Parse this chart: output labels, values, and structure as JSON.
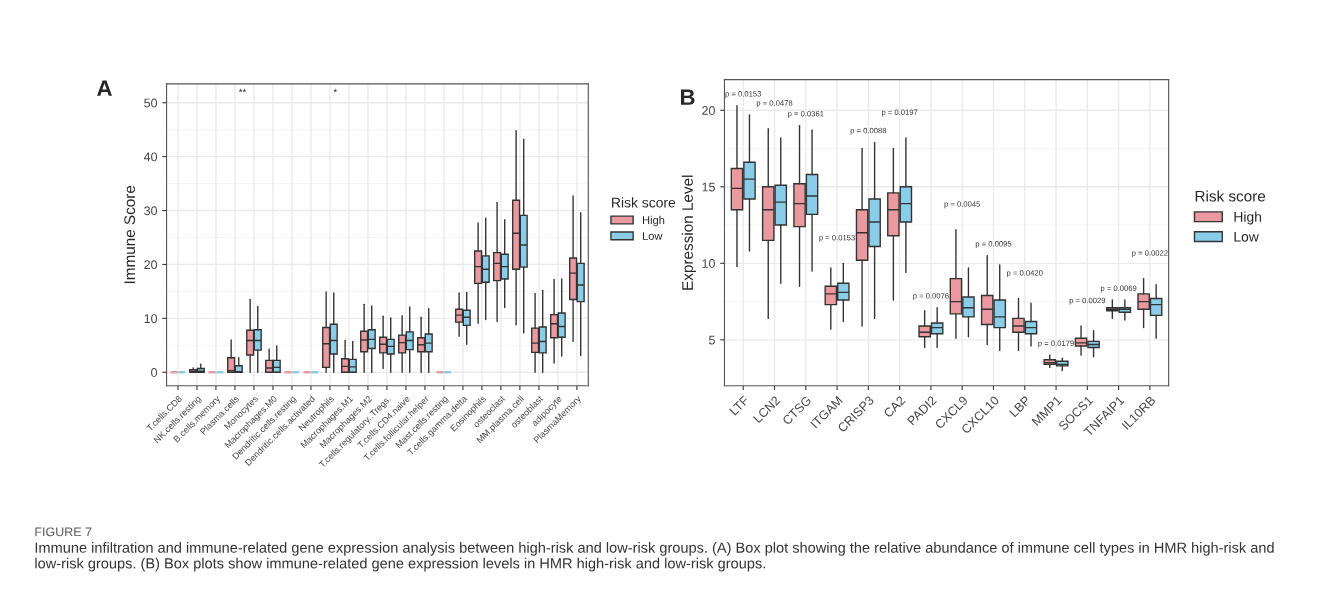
{
  "chart_data": [
    {
      "type": "box",
      "title": "A",
      "ylabel": "Immune Score",
      "legend_title": "Risk score",
      "legend": "right",
      "grid": true,
      "categories": [
        "T.cells.CD8",
        "NK.cells.resting",
        "B.cells.memory",
        "Plasma.cells",
        "Monocytes",
        "Macrophages.M0",
        "Dendritic.cells.resting",
        "Dendritic.cells.activated",
        "Neutrophils",
        "Macrophages.M1",
        "Macrophages.M2",
        "T.cells.regulatory..Tregs.",
        "T.cells.CD4.naive",
        "T.cells.follicular.helper",
        "Mast.cells.resting",
        "T.cells.gamma.delta",
        "Eosinophils",
        "osteoclast",
        "MM.plasma.cell",
        "osteoblast",
        "adipocyte",
        "PlasmaMemory"
      ],
      "ylim": [
        -2.5,
        53.5
      ],
      "yticks": [
        0,
        10,
        20,
        30,
        40,
        50
      ],
      "annotations": [
        "**",
        "*",
        "FIGURE 7",
        "Immune infiltration and immune-related gene expression analysis between high-risk and low-risk groups. (A) Box plot showing the relative abundance of immune cell types in HMR high-risk and low-risk groups. (B) Box plots show immune-related gene expression levels in HMR high-risk and low-risk groups."
      ],
      "series": [
        {
          "name": "High",
          "color": "#ea9a9e",
          "boxes": [
            {
              "low": 0,
              "q1": 0,
              "median": 0,
              "q3": 0,
              "high": 0
            },
            {
              "low": 0,
              "q1": 0,
              "median": 0.2,
              "q3": 0.5,
              "high": 0.8
            },
            {
              "low": 0,
              "q1": 0,
              "median": 0,
              "q3": 0,
              "high": 0
            },
            {
              "low": 0,
              "q1": 0,
              "median": 0.3,
              "q3": 2.7,
              "high": 6
            },
            {
              "low": 0,
              "q1": 3.2,
              "median": 5.9,
              "q3": 7.8,
              "high": 13.5
            },
            {
              "low": 0,
              "q1": 0,
              "median": 0.8,
              "q3": 2.2,
              "high": 4.3
            },
            {
              "low": 0,
              "q1": 0,
              "median": 0,
              "q3": 0,
              "high": 0
            },
            {
              "low": 0,
              "q1": 0,
              "median": 0,
              "q3": 0,
              "high": 0
            },
            {
              "low": 0,
              "q1": 0.9,
              "median": 5.3,
              "q3": 8.3,
              "high": 14.9
            },
            {
              "low": 0,
              "q1": 0,
              "median": 1.1,
              "q3": 2.5,
              "high": 5.9
            },
            {
              "low": 0,
              "q1": 3.8,
              "median": 6.0,
              "q3": 7.6,
              "high": 12.6
            },
            {
              "low": 0.7,
              "q1": 3.6,
              "median": 5.2,
              "q3": 6.5,
              "high": 10.4
            },
            {
              "low": 0,
              "q1": 3.6,
              "median": 5.5,
              "q3": 6.9,
              "high": 10.5
            },
            {
              "low": 0,
              "q1": 3.8,
              "median": 5.1,
              "q3": 6.4,
              "high": 10.2
            },
            {
              "low": 0,
              "q1": 0,
              "median": 0,
              "q3": 0,
              "high": 0
            },
            {
              "low": 6.7,
              "q1": 9.3,
              "median": 10.6,
              "q3": 11.7,
              "high": 14.7
            },
            {
              "low": 9.1,
              "q1": 16.5,
              "median": 19.6,
              "q3": 22.5,
              "high": 27.7
            },
            {
              "low": 9.4,
              "q1": 17.0,
              "median": 20.2,
              "q3": 22.2,
              "high": 31.5
            },
            {
              "low": 8.8,
              "q1": 19.1,
              "median": 25.8,
              "q3": 31.9,
              "high": 44.8
            },
            {
              "low": 0,
              "q1": 3.7,
              "median": 5.4,
              "q3": 8.2,
              "high": 14.6
            },
            {
              "low": 1.7,
              "q1": 6.4,
              "median": 9.0,
              "q3": 10.7,
              "high": 17.2
            },
            {
              "low": 5.7,
              "q1": 13.5,
              "median": 18.4,
              "q3": 21.2,
              "high": 32.7
            }
          ]
        },
        {
          "name": "Low",
          "color": "#89cde9",
          "boxes": [
            {
              "low": 0,
              "q1": 0,
              "median": 0,
              "q3": 0,
              "high": 0
            },
            {
              "low": 0,
              "q1": 0,
              "median": 0.2,
              "q3": 0.7,
              "high": 1.5
            },
            {
              "low": 0,
              "q1": 0,
              "median": 0,
              "q3": 0,
              "high": 0
            },
            {
              "low": 0,
              "q1": 0,
              "median": 0.1,
              "q3": 1.2,
              "high": 2.7
            },
            {
              "low": 0,
              "q1": 4.1,
              "median": 5.9,
              "q3": 7.9,
              "high": 12.2
            },
            {
              "low": 0,
              "q1": 0,
              "median": 0.9,
              "q3": 2.2,
              "high": 4.9
            },
            {
              "low": 0,
              "q1": 0,
              "median": 0,
              "q3": 0,
              "high": 0
            },
            {
              "low": 0,
              "q1": 0,
              "median": 0,
              "q3": 0,
              "high": 0
            },
            {
              "low": 0,
              "q1": 3.4,
              "median": 5.9,
              "q3": 8.9,
              "high": 14.7
            },
            {
              "low": 0,
              "q1": 0,
              "median": 1.0,
              "q3": 2.4,
              "high": 5.7
            },
            {
              "low": 0,
              "q1": 4.4,
              "median": 6.1,
              "q3": 7.9,
              "high": 12.3
            },
            {
              "low": 0,
              "q1": 3.4,
              "median": 4.8,
              "q3": 6.1,
              "high": 10.1
            },
            {
              "low": 0,
              "q1": 4.2,
              "median": 5.9,
              "q3": 7.5,
              "high": 12.1
            },
            {
              "low": 0,
              "q1": 3.8,
              "median": 5.4,
              "q3": 7.1,
              "high": 11.8
            },
            {
              "low": 0,
              "q1": 0,
              "median": 0,
              "q3": 0,
              "high": 0
            },
            {
              "low": 5.2,
              "q1": 8.7,
              "median": 10.2,
              "q3": 11.5,
              "high": 14.8
            },
            {
              "low": 9.8,
              "q1": 16.7,
              "median": 19.1,
              "q3": 21.6,
              "high": 28.6
            },
            {
              "low": 12.0,
              "q1": 17.3,
              "median": 19.6,
              "q3": 21.9,
              "high": 28.3
            },
            {
              "low": 7.3,
              "q1": 19.5,
              "median": 23.6,
              "q3": 29.1,
              "high": 43.2
            },
            {
              "low": 0,
              "q1": 3.6,
              "median": 5.7,
              "q3": 8.4,
              "high": 15.2
            },
            {
              "low": 3.0,
              "q1": 6.5,
              "median": 8.5,
              "q3": 11.0,
              "high": 17.3
            },
            {
              "low": 3.1,
              "q1": 13.1,
              "median": 16.2,
              "q3": 20.2,
              "high": 29.6
            }
          ]
        }
      ]
    },
    {
      "type": "box",
      "title": "B",
      "ylabel": "Expression Level",
      "legend_title": "Risk score",
      "legend": "right",
      "grid": true,
      "categories": [
        "LTF",
        "LCN2",
        "CTSG",
        "ITGAM",
        "CRISP3",
        "CA2",
        "PADI2",
        "CXCL9",
        "CXCL10",
        "LBP",
        "MMP1",
        "SOCS1",
        "TNFAIP1",
        "IL10RB"
      ],
      "ylim": [
        2,
        22
      ],
      "yticks": [
        5,
        10,
        15,
        20
      ],
      "annotations": [
        "p = 0.0153",
        "p = 0.0478",
        "p = 0.0361",
        "p = 0.0153",
        "p = 0.0088",
        "p = 0.0197",
        "p = 0.0076",
        "p = 0.0045",
        "p = 0.0095",
        "p = 0.0420",
        "p = 0.0179",
        "p = 0.0029",
        "p = 0.0069",
        "p = 0.0022"
      ],
      "series": [
        {
          "name": "High",
          "color": "#ea9a9e",
          "boxes": [
            {
              "low": 9.8,
              "q1": 13.5,
              "median": 14.9,
              "q3": 16.2,
              "high": 20.3
            },
            {
              "low": 6.4,
              "q1": 11.5,
              "median": 13.5,
              "q3": 15.0,
              "high": 18.8
            },
            {
              "low": 8.5,
              "q1": 12.4,
              "median": 13.9,
              "q3": 15.2,
              "high": 19.0
            },
            {
              "low": 5.7,
              "q1": 7.3,
              "median": 8.0,
              "q3": 8.5,
              "high": 9.7
            },
            {
              "low": 5.9,
              "q1": 10.2,
              "median": 12.0,
              "q3": 13.5,
              "high": 17.5
            },
            {
              "low": 7.6,
              "q1": 11.8,
              "median": 13.5,
              "q3": 14.6,
              "high": 17.5
            },
            {
              "low": 4.5,
              "q1": 5.2,
              "median": 5.5,
              "q3": 5.9,
              "high": 6.9
            },
            {
              "low": 5.1,
              "q1": 6.7,
              "median": 7.5,
              "q3": 9.0,
              "high": 12.2
            },
            {
              "low": 4.7,
              "q1": 6.0,
              "median": 7.0,
              "q3": 7.9,
              "high": 10.5
            },
            {
              "low": 4.3,
              "q1": 5.5,
              "median": 5.9,
              "q3": 6.4,
              "high": 7.7
            },
            {
              "low": 3.2,
              "q1": 3.4,
              "median": 3.5,
              "q3": 3.7,
              "high": 4.0
            },
            {
              "low": 4.0,
              "q1": 4.6,
              "median": 4.8,
              "q3": 5.1,
              "high": 5.9
            },
            {
              "low": 6.4,
              "q1": 6.9,
              "median": 7.0,
              "q3": 7.1,
              "high": 7.6
            },
            {
              "low": 5.8,
              "q1": 7.0,
              "median": 7.5,
              "q3": 8.0,
              "high": 9.0
            }
          ]
        },
        {
          "name": "Low",
          "color": "#89cde9",
          "boxes": [
            {
              "low": 10.8,
              "q1": 14.2,
              "median": 15.5,
              "q3": 16.6,
              "high": 19.7
            },
            {
              "low": 8.7,
              "q1": 12.5,
              "median": 14.0,
              "q3": 15.1,
              "high": 18.2
            },
            {
              "low": 9.5,
              "q1": 13.2,
              "median": 14.4,
              "q3": 15.8,
              "high": 18.7
            },
            {
              "low": 6.2,
              "q1": 7.6,
              "median": 8.1,
              "q3": 8.7,
              "high": 10.0
            },
            {
              "low": 6.4,
              "q1": 11.1,
              "median": 12.7,
              "q3": 14.2,
              "high": 17.9
            },
            {
              "low": 9.4,
              "q1": 12.7,
              "median": 13.9,
              "q3": 15.0,
              "high": 18.2
            },
            {
              "low": 4.5,
              "q1": 5.4,
              "median": 5.8,
              "q3": 6.1,
              "high": 7.1
            },
            {
              "low": 5.2,
              "q1": 6.5,
              "median": 7.1,
              "q3": 7.8,
              "high": 9.7
            },
            {
              "low": 4.3,
              "q1": 5.8,
              "median": 6.5,
              "q3": 7.6,
              "high": 9.9
            },
            {
              "low": 4.6,
              "q1": 5.4,
              "median": 5.8,
              "q3": 6.2,
              "high": 7.4
            },
            {
              "low": 3.0,
              "q1": 3.3,
              "median": 3.4,
              "q3": 3.6,
              "high": 3.8
            },
            {
              "low": 3.9,
              "q1": 4.5,
              "median": 4.7,
              "q3": 4.9,
              "high": 5.6
            },
            {
              "low": 6.3,
              "q1": 6.8,
              "median": 7.0,
              "q3": 7.1,
              "high": 7.6
            },
            {
              "low": 5.1,
              "q1": 6.6,
              "median": 7.3,
              "q3": 7.7,
              "high": 8.6
            }
          ]
        }
      ]
    }
  ]
}
